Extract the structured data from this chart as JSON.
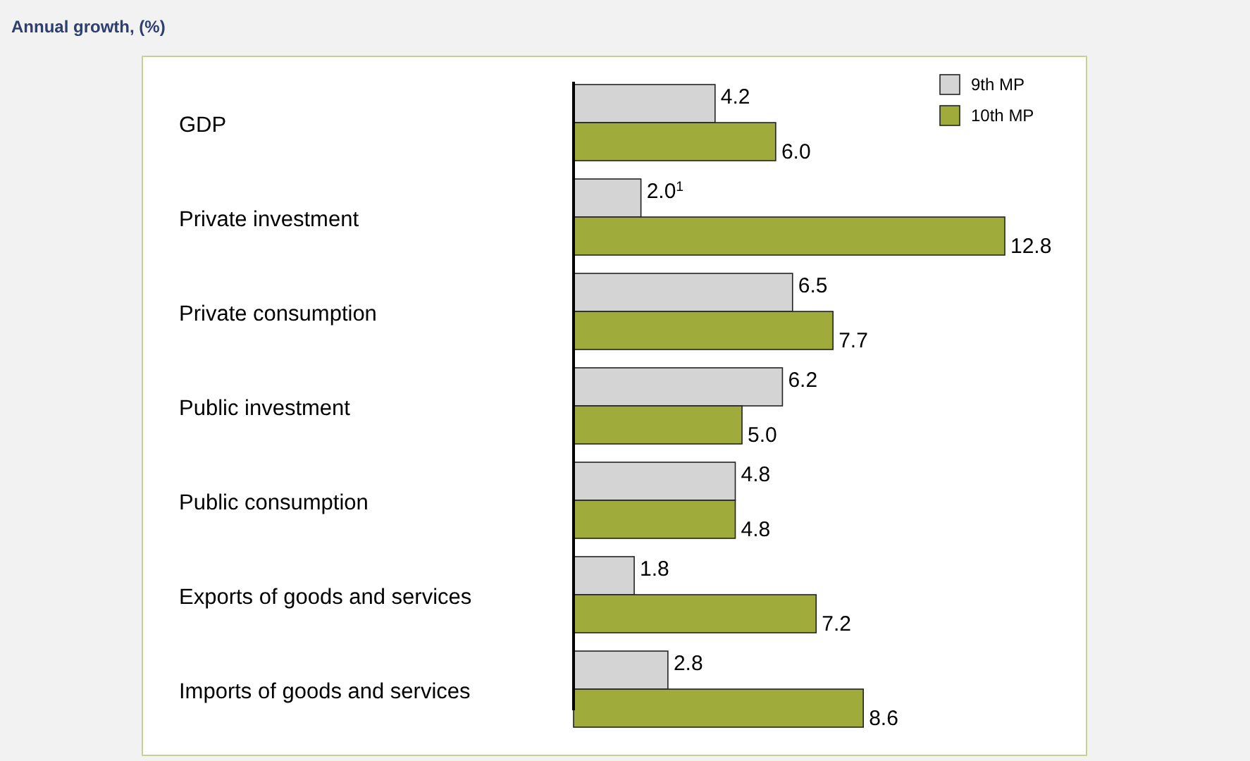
{
  "chart_data": {
    "type": "bar",
    "orientation": "horizontal",
    "title": "Annual growth, (%)",
    "categories": [
      "GDP",
      "Private investment",
      "Private consumption",
      "Public investment",
      "Public consumption",
      "Exports of goods and services",
      "Imports of goods and services"
    ],
    "series": [
      {
        "name": "9th MP",
        "color": "#d4d4d4",
        "values": [
          4.2,
          2.0,
          6.5,
          6.2,
          4.8,
          1.8,
          2.8
        ],
        "value_labels": [
          "4.2",
          "2.0$^{1}$",
          "6.5",
          "6.2",
          "4.8",
          "1.8",
          "2.8"
        ]
      },
      {
        "name": "10th MP",
        "color": "#9fab3a",
        "values": [
          6.0,
          12.8,
          7.7,
          5.0,
          4.8,
          7.2,
          8.6
        ],
        "value_labels": [
          "6.0",
          "12.8",
          "7.7",
          "5.0",
          "4.8",
          "7.2",
          "8.6"
        ]
      }
    ],
    "legend": "top right",
    "grid": false
  }
}
